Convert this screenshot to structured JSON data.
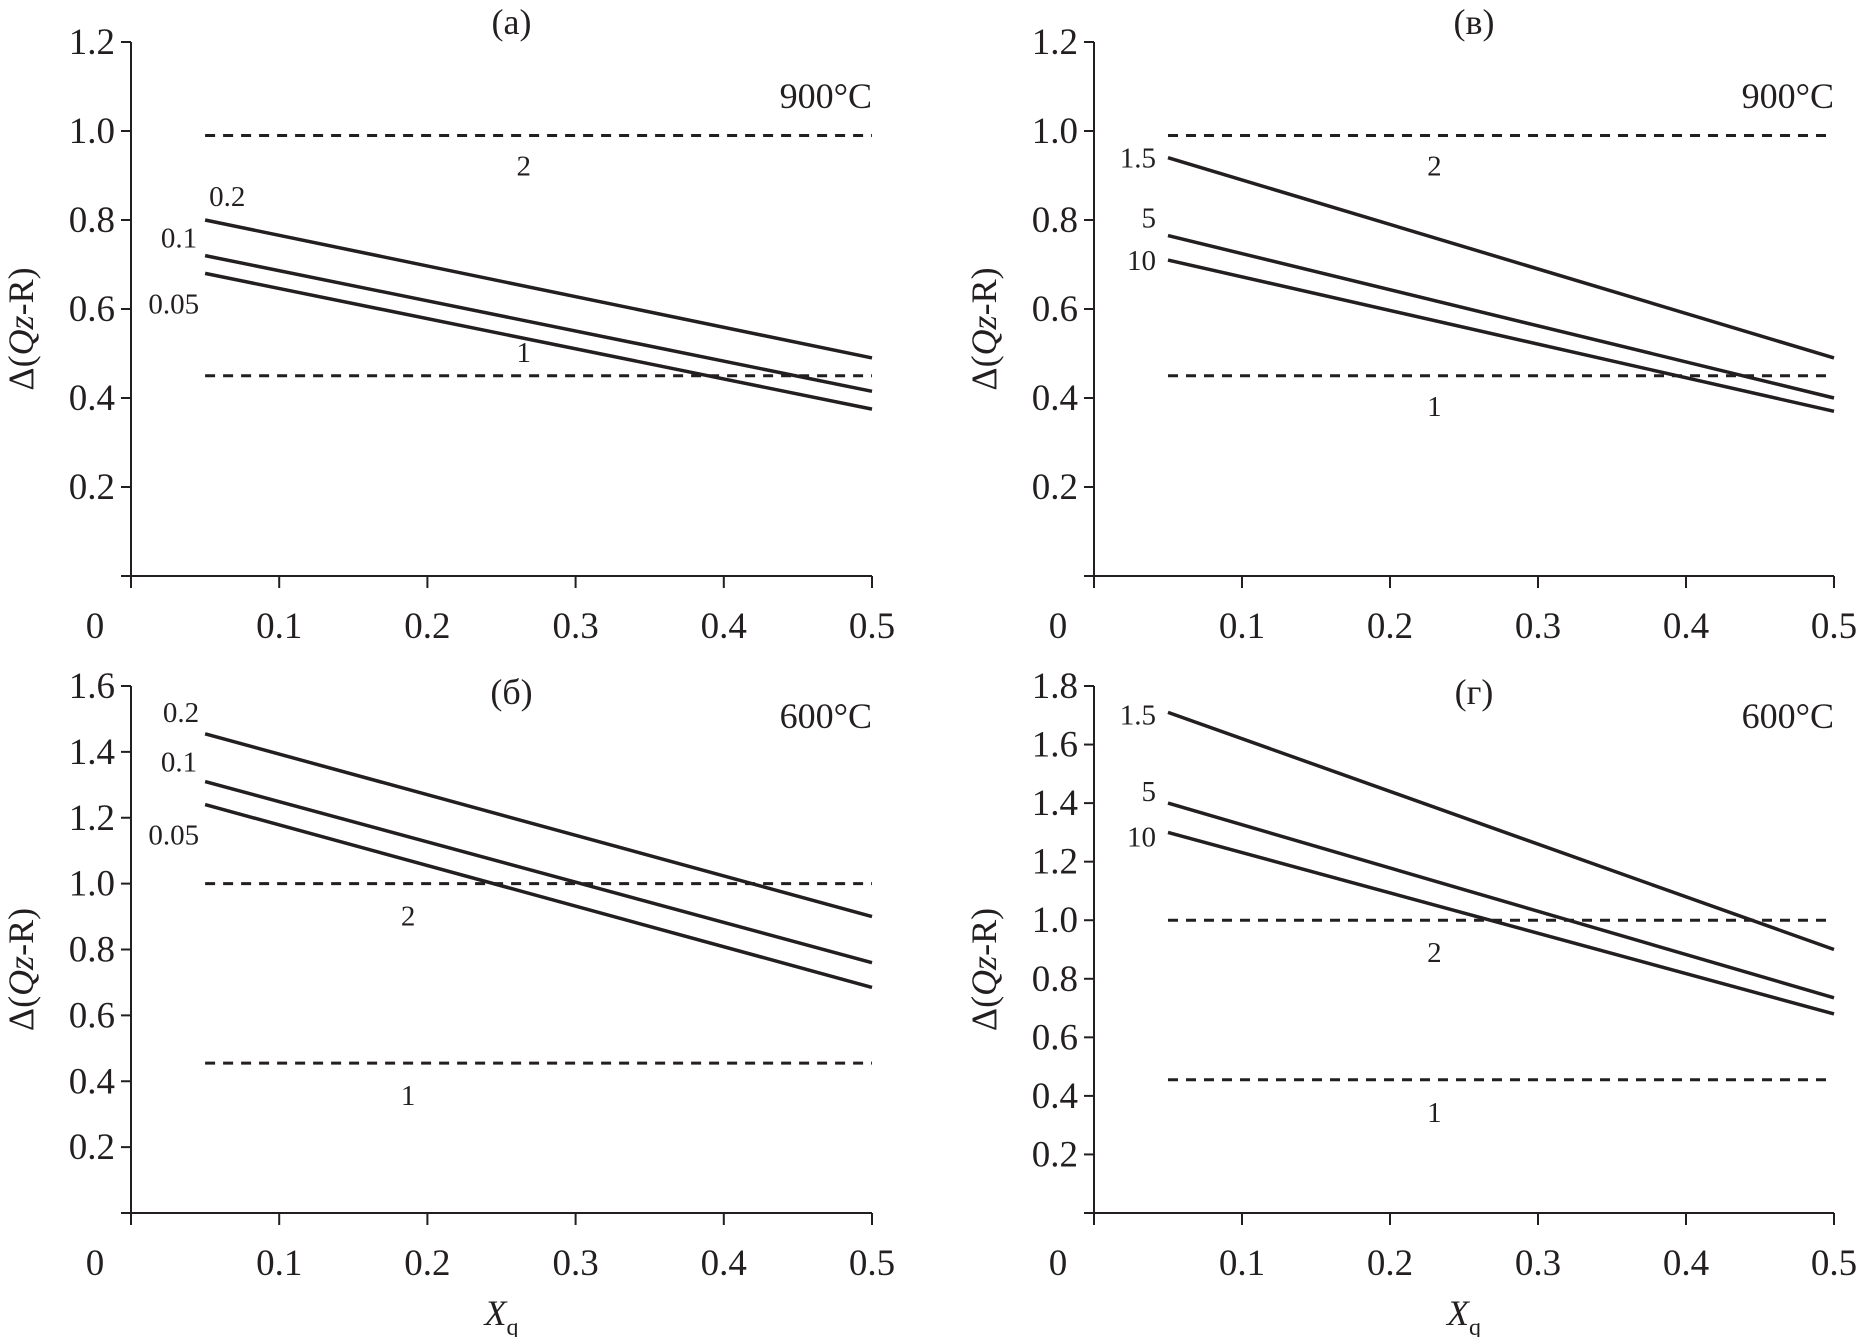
{
  "chart_data": [
    {
      "type": "line",
      "title": "(a)",
      "annotation": "900°C",
      "xlabel": "",
      "ylabel_parts": [
        "Δ(",
        "Qz",
        "-R)"
      ],
      "xlim": [
        0,
        0.5
      ],
      "ylim": [
        0,
        1.2
      ],
      "xticks": [
        "0",
        "0.1",
        "0.2",
        "0.3",
        "0.4",
        "0.5"
      ],
      "yticks": [
        "0.2",
        "0.4",
        "0.6",
        "0.8",
        "1.0",
        "1.2"
      ],
      "x": [
        0.05,
        0.5
      ],
      "series": [
        {
          "name": "0.2",
          "values": [
            0.8,
            0.49
          ]
        },
        {
          "name": "0.1",
          "values": [
            0.72,
            0.415
          ]
        },
        {
          "name": "0.05",
          "values": [
            0.68,
            0.375
          ]
        }
      ],
      "reference_lines": [
        {
          "name": "2",
          "value": 0.99
        },
        {
          "name": "1",
          "value": 0.45
        }
      ]
    },
    {
      "type": "line",
      "title": "(в)",
      "annotation": "900°C",
      "xlabel": "",
      "ylabel_parts": [
        "Δ(",
        "Qz",
        "-R)"
      ],
      "xlim": [
        0,
        0.5
      ],
      "ylim": [
        0,
        1.2
      ],
      "xticks": [
        "0",
        "0.1",
        "0.2",
        "0.3",
        "0.4",
        "0.5"
      ],
      "yticks": [
        "0.2",
        "0.4",
        "0.6",
        "0.8",
        "1.0",
        "1.2"
      ],
      "x": [
        0.05,
        0.5
      ],
      "series": [
        {
          "name": "1.5",
          "values": [
            0.94,
            0.49
          ]
        },
        {
          "name": "5",
          "values": [
            0.765,
            0.4
          ]
        },
        {
          "name": "10",
          "values": [
            0.71,
            0.37
          ]
        }
      ],
      "reference_lines": [
        {
          "name": "2",
          "value": 0.99
        },
        {
          "name": "1",
          "value": 0.45
        }
      ]
    },
    {
      "type": "line",
      "title": "(б)",
      "annotation": "600°C",
      "xlabel_parts": [
        "X",
        "q"
      ],
      "ylabel_parts": [
        "Δ(",
        "Qz",
        "-R)"
      ],
      "xlim": [
        0,
        0.5
      ],
      "ylim": [
        0,
        1.6
      ],
      "xticks": [
        "0",
        "0.1",
        "0.2",
        "0.3",
        "0.4",
        "0.5"
      ],
      "yticks": [
        "0.2",
        "0.4",
        "0.6",
        "0.8",
        "1.0",
        "1.2",
        "1.4",
        "1.6"
      ],
      "x": [
        0.05,
        0.5
      ],
      "series": [
        {
          "name": "0.2",
          "values": [
            1.455,
            0.9
          ]
        },
        {
          "name": "0.1",
          "values": [
            1.31,
            0.76
          ]
        },
        {
          "name": "0.05",
          "values": [
            1.24,
            0.685
          ]
        }
      ],
      "reference_lines": [
        {
          "name": "2",
          "value": 1.0
        },
        {
          "name": "1",
          "value": 0.455
        }
      ]
    },
    {
      "type": "line",
      "title": "(г)",
      "annotation": "600°C",
      "xlabel_parts": [
        "X",
        "q"
      ],
      "ylabel_parts": [
        "Δ(",
        "Qz",
        "-R)"
      ],
      "xlim": [
        0,
        0.5
      ],
      "ylim": [
        0,
        1.8
      ],
      "xticks": [
        "0",
        "0.1",
        "0.2",
        "0.3",
        "0.4",
        "0.5"
      ],
      "yticks": [
        "0.2",
        "0.4",
        "0.6",
        "0.8",
        "1.0",
        "1.2",
        "1.4",
        "1.6",
        "1.8"
      ],
      "x": [
        0.05,
        0.5
      ],
      "series": [
        {
          "name": "1.5",
          "values": [
            1.71,
            0.9
          ]
        },
        {
          "name": "5",
          "values": [
            1.4,
            0.735
          ]
        },
        {
          "name": "10",
          "values": [
            1.3,
            0.68
          ]
        }
      ],
      "reference_lines": [
        {
          "name": "2",
          "value": 1.0
        },
        {
          "name": "1",
          "value": 0.455
        }
      ]
    }
  ]
}
